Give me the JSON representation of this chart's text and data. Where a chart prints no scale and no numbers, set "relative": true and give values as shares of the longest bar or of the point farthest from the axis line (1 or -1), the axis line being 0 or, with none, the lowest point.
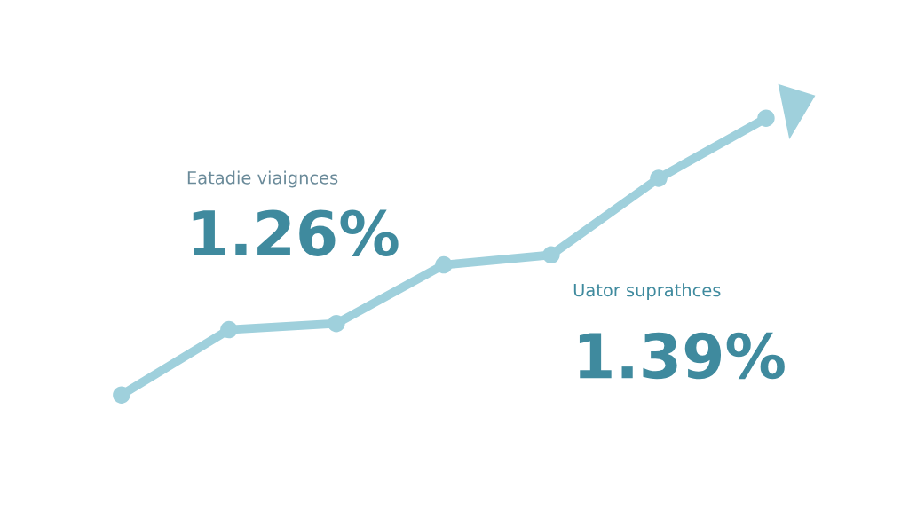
{
  "chart_data": {
    "type": "line",
    "relative": true,
    "categories": [
      null,
      null,
      null,
      null,
      null,
      null,
      null
    ],
    "series": [
      {
        "color": "#9fd0dc",
        "values": [
          0,
          0.236,
          0.258,
          0.47,
          0.506,
          0.783,
          1
        ]
      }
    ],
    "marker": "circle",
    "annotations": [
      "Eatadie viaignces",
      "1.26%",
      "Uator suprathces",
      "1.39%"
    ]
  }
}
